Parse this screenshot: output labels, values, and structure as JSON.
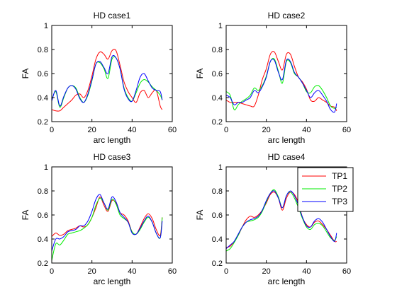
{
  "chart_data": [
    {
      "type": "line",
      "title": "HD case1",
      "xlabel": "arc length",
      "ylabel": "FA",
      "xlim": [
        0,
        60
      ],
      "ylim": [
        0.2,
        1
      ],
      "xticks": [
        0,
        20,
        40,
        60
      ],
      "yticks": [
        0.2,
        0.4,
        0.6,
        0.8,
        1
      ],
      "yticklabels": [
        "0.2",
        "0.4",
        "0.6",
        "0.8",
        "1"
      ],
      "series": [
        {
          "name": "TP1",
          "color": "#ff0000",
          "x": [
            0,
            2,
            4,
            6,
            8,
            10,
            12,
            14,
            16,
            18,
            20,
            22,
            24,
            26,
            28,
            30,
            32,
            34,
            36,
            38,
            40,
            42,
            44,
            46,
            48,
            50,
            52,
            54,
            55
          ],
          "y": [
            0.3,
            0.29,
            0.29,
            0.32,
            0.35,
            0.38,
            0.42,
            0.43,
            0.4,
            0.46,
            0.58,
            0.72,
            0.78,
            0.76,
            0.72,
            0.79,
            0.79,
            0.67,
            0.53,
            0.45,
            0.4,
            0.36,
            0.44,
            0.46,
            0.4,
            0.44,
            0.46,
            0.33,
            0.3
          ]
        },
        {
          "name": "TP2",
          "color": "#00ee00",
          "x": [
            0,
            2,
            4,
            6,
            8,
            10,
            12,
            14,
            16,
            18,
            20,
            22,
            24,
            26,
            28,
            30,
            32,
            34,
            36,
            38,
            40,
            42,
            44,
            46,
            48,
            50,
            52,
            54,
            55
          ],
          "y": [
            0.38,
            0.45,
            0.32,
            0.4,
            0.48,
            0.5,
            0.48,
            0.4,
            0.36,
            0.42,
            0.54,
            0.68,
            0.69,
            0.64,
            0.56,
            0.72,
            0.73,
            0.64,
            0.48,
            0.4,
            0.37,
            0.44,
            0.52,
            0.55,
            0.53,
            0.49,
            0.46,
            0.42,
            0.38
          ]
        },
        {
          "name": "TP3",
          "color": "#0000ff",
          "x": [
            0,
            2,
            4,
            6,
            8,
            10,
            12,
            14,
            16,
            18,
            20,
            22,
            24,
            26,
            28,
            30,
            32,
            34,
            36,
            38,
            40,
            42,
            44,
            46,
            48,
            50,
            52,
            54,
            55
          ],
          "y": [
            0.37,
            0.46,
            0.33,
            0.41,
            0.48,
            0.5,
            0.47,
            0.39,
            0.36,
            0.43,
            0.55,
            0.68,
            0.7,
            0.65,
            0.6,
            0.74,
            0.73,
            0.64,
            0.47,
            0.39,
            0.37,
            0.46,
            0.57,
            0.6,
            0.54,
            0.48,
            0.46,
            0.45,
            0.38
          ]
        }
      ]
    },
    {
      "type": "line",
      "title": "HD case2",
      "xlabel": "arc length",
      "ylabel": "FA",
      "xlim": [
        0,
        60
      ],
      "ylim": [
        0.2,
        1
      ],
      "xticks": [
        0,
        20,
        40,
        60
      ],
      "yticks": [
        0.2,
        0.4,
        0.6,
        0.8,
        1
      ],
      "yticklabels": [
        "0.2",
        "0.4",
        "0.6",
        "0.8",
        "1"
      ],
      "series": [
        {
          "name": "TP1",
          "color": "#ff0000",
          "x": [
            0,
            2,
            4,
            6,
            8,
            10,
            12,
            14,
            16,
            18,
            20,
            22,
            24,
            26,
            28,
            30,
            32,
            34,
            36,
            38,
            40,
            42,
            44,
            46,
            48,
            50,
            52,
            54,
            55
          ],
          "y": [
            0.38,
            0.36,
            0.36,
            0.36,
            0.35,
            0.34,
            0.33,
            0.33,
            0.42,
            0.55,
            0.64,
            0.76,
            0.78,
            0.7,
            0.63,
            0.76,
            0.76,
            0.66,
            0.57,
            0.53,
            0.47,
            0.38,
            0.37,
            0.4,
            0.38,
            0.36,
            0.33,
            0.32,
            0.29
          ]
        },
        {
          "name": "TP2",
          "color": "#00ee00",
          "x": [
            0,
            2,
            4,
            6,
            8,
            10,
            12,
            14,
            16,
            18,
            20,
            22,
            24,
            26,
            28,
            30,
            32,
            34,
            36,
            38,
            40,
            42,
            44,
            46,
            48,
            50,
            52,
            54,
            55
          ],
          "y": [
            0.45,
            0.42,
            0.3,
            0.34,
            0.37,
            0.39,
            0.42,
            0.48,
            0.46,
            0.5,
            0.58,
            0.7,
            0.72,
            0.62,
            0.52,
            0.7,
            0.69,
            0.6,
            0.57,
            0.52,
            0.45,
            0.44,
            0.49,
            0.5,
            0.46,
            0.4,
            0.33,
            0.31,
            0.32
          ]
        },
        {
          "name": "TP3",
          "color": "#0000ff",
          "x": [
            0,
            2,
            4,
            6,
            8,
            10,
            12,
            14,
            16,
            18,
            20,
            22,
            24,
            26,
            28,
            30,
            32,
            34,
            36,
            38,
            40,
            42,
            44,
            46,
            48,
            50,
            52,
            54,
            55
          ],
          "y": [
            0.42,
            0.4,
            0.34,
            0.36,
            0.36,
            0.38,
            0.4,
            0.46,
            0.44,
            0.49,
            0.57,
            0.7,
            0.71,
            0.61,
            0.55,
            0.71,
            0.7,
            0.61,
            0.57,
            0.52,
            0.46,
            0.4,
            0.44,
            0.46,
            0.42,
            0.37,
            0.3,
            0.28,
            0.35
          ]
        }
      ]
    },
    {
      "type": "line",
      "title": "HD case3",
      "xlabel": "arc length",
      "ylabel": "FA",
      "xlim": [
        0,
        60
      ],
      "ylim": [
        0.2,
        1
      ],
      "xticks": [
        0,
        20,
        40,
        60
      ],
      "yticks": [
        0.2,
        0.4,
        0.6,
        0.8,
        1
      ],
      "yticklabels": [
        "0.2",
        "0.4",
        "0.6",
        "0.8",
        "1"
      ],
      "series": [
        {
          "name": "TP1",
          "color": "#ff0000",
          "x": [
            0,
            2,
            4,
            6,
            8,
            10,
            12,
            14,
            16,
            18,
            20,
            22,
            24,
            26,
            28,
            30,
            32,
            34,
            36,
            38,
            40,
            42,
            44,
            46,
            48,
            50,
            52,
            54,
            55
          ],
          "y": [
            0.42,
            0.45,
            0.43,
            0.44,
            0.47,
            0.48,
            0.49,
            0.51,
            0.5,
            0.52,
            0.58,
            0.66,
            0.75,
            0.68,
            0.63,
            0.72,
            0.7,
            0.62,
            0.6,
            0.55,
            0.46,
            0.44,
            0.5,
            0.57,
            0.61,
            0.57,
            0.48,
            0.43,
            0.58
          ]
        },
        {
          "name": "TP2",
          "color": "#00ee00",
          "x": [
            0,
            2,
            4,
            6,
            8,
            10,
            12,
            14,
            16,
            18,
            20,
            22,
            24,
            26,
            28,
            30,
            32,
            34,
            36,
            38,
            40,
            42,
            44,
            46,
            48,
            50,
            52,
            54,
            55
          ],
          "y": [
            0.22,
            0.36,
            0.35,
            0.39,
            0.44,
            0.45,
            0.46,
            0.47,
            0.49,
            0.52,
            0.58,
            0.68,
            0.74,
            0.7,
            0.64,
            0.73,
            0.69,
            0.6,
            0.57,
            0.54,
            0.46,
            0.44,
            0.48,
            0.54,
            0.58,
            0.54,
            0.45,
            0.41,
            0.58
          ]
        },
        {
          "name": "TP3",
          "color": "#0000ff",
          "x": [
            0,
            2,
            4,
            6,
            8,
            10,
            12,
            14,
            16,
            18,
            20,
            22,
            24,
            26,
            28,
            30,
            32,
            34,
            36,
            38,
            40,
            42,
            44,
            46,
            48,
            50,
            52,
            54,
            55
          ],
          "y": [
            0.3,
            0.4,
            0.4,
            0.42,
            0.46,
            0.47,
            0.48,
            0.51,
            0.51,
            0.55,
            0.63,
            0.73,
            0.77,
            0.7,
            0.65,
            0.75,
            0.71,
            0.62,
            0.58,
            0.54,
            0.45,
            0.44,
            0.49,
            0.55,
            0.59,
            0.54,
            0.45,
            0.41,
            0.55
          ]
        }
      ]
    },
    {
      "type": "line",
      "title": "HD case4",
      "xlabel": "arc length",
      "ylabel": "FA",
      "xlim": [
        0,
        60
      ],
      "ylim": [
        0.2,
        1
      ],
      "xticks": [
        0,
        20,
        40,
        60
      ],
      "yticks": [
        0.2,
        0.4,
        0.6,
        0.8,
        1
      ],
      "yticklabels": [
        "0.2",
        "0.4",
        "0.6",
        "0.8",
        "1"
      ],
      "legend": {
        "entries": [
          "TP1",
          "TP2",
          "TP3"
        ],
        "location": "top-right"
      },
      "series": [
        {
          "name": "TP1",
          "color": "#ff0000",
          "x": [
            0,
            2,
            4,
            6,
            8,
            10,
            12,
            14,
            16,
            18,
            20,
            22,
            24,
            26,
            28,
            30,
            32,
            34,
            36,
            38,
            40,
            42,
            44,
            46,
            48,
            50,
            52,
            54,
            55
          ],
          "y": [
            0.33,
            0.34,
            0.38,
            0.43,
            0.5,
            0.56,
            0.59,
            0.58,
            0.6,
            0.64,
            0.7,
            0.77,
            0.79,
            0.74,
            0.64,
            0.74,
            0.79,
            0.77,
            0.7,
            0.58,
            0.52,
            0.5,
            0.54,
            0.55,
            0.52,
            0.48,
            0.43,
            0.38,
            0.38
          ]
        },
        {
          "name": "TP2",
          "color": "#00ee00",
          "x": [
            0,
            2,
            4,
            6,
            8,
            10,
            12,
            14,
            16,
            18,
            20,
            22,
            24,
            26,
            28,
            30,
            32,
            34,
            36,
            38,
            40,
            42,
            44,
            46,
            48,
            50,
            52,
            54,
            55
          ],
          "y": [
            0.3,
            0.32,
            0.37,
            0.43,
            0.5,
            0.54,
            0.55,
            0.56,
            0.58,
            0.63,
            0.71,
            0.78,
            0.81,
            0.75,
            0.66,
            0.76,
            0.79,
            0.74,
            0.66,
            0.57,
            0.5,
            0.48,
            0.52,
            0.53,
            0.51,
            0.46,
            0.41,
            0.39,
            0.42
          ]
        },
        {
          "name": "TP3",
          "color": "#0000ff",
          "x": [
            0,
            2,
            4,
            6,
            8,
            10,
            12,
            14,
            16,
            18,
            20,
            22,
            24,
            26,
            28,
            30,
            32,
            34,
            36,
            38,
            40,
            42,
            44,
            46,
            48,
            50,
            52,
            54,
            55
          ],
          "y": [
            0.32,
            0.35,
            0.38,
            0.44,
            0.5,
            0.54,
            0.56,
            0.57,
            0.59,
            0.64,
            0.72,
            0.78,
            0.8,
            0.74,
            0.66,
            0.76,
            0.8,
            0.76,
            0.68,
            0.58,
            0.51,
            0.5,
            0.55,
            0.57,
            0.54,
            0.48,
            0.42,
            0.38,
            0.45
          ]
        }
      ]
    }
  ]
}
